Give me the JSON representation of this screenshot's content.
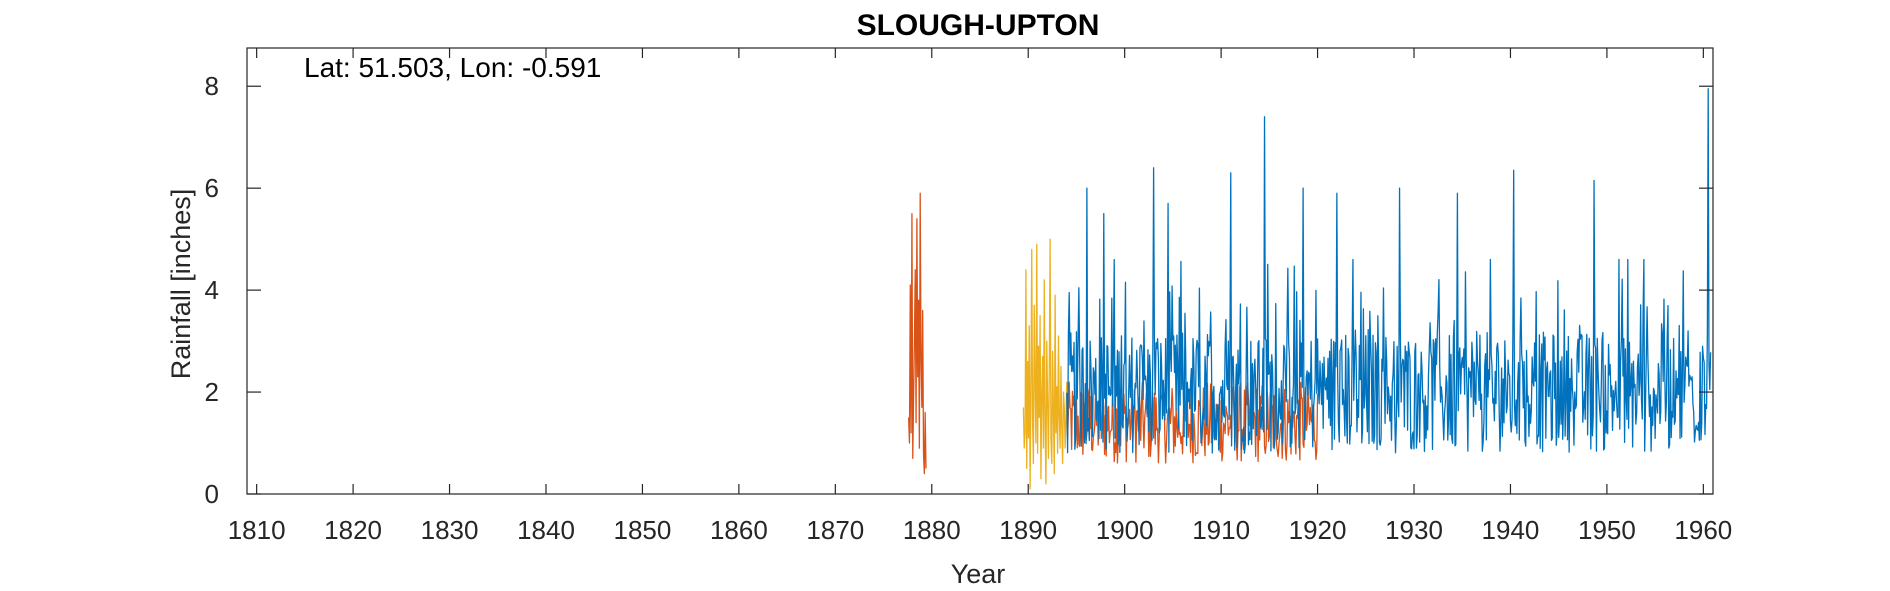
{
  "chart_data": {
    "type": "line",
    "title": "SLOUGH-UPTON",
    "annotation": "Lat: 51.503, Lon: -0.591",
    "xlabel": "Year",
    "ylabel": "Rainfall [inches]",
    "xlim": [
      1809,
      1961
    ],
    "ylim": [
      0,
      8.75
    ],
    "xticks": [
      1810,
      1820,
      1830,
      1840,
      1850,
      1860,
      1870,
      1880,
      1890,
      1900,
      1910,
      1920,
      1930,
      1940,
      1950,
      1960
    ],
    "xtick_labels": [
      "1810",
      "1820",
      "1830",
      "1840",
      "1850",
      "1860",
      "1870",
      "1880",
      "1890",
      "1900",
      "1910",
      "1920",
      "1930",
      "1940",
      "1950",
      "1960"
    ],
    "yticks": [
      0,
      2,
      4,
      6,
      8
    ],
    "ytick_labels": [
      "0",
      "2",
      "4",
      "6",
      "8"
    ],
    "grid": false,
    "box": true,
    "series": [
      {
        "color": "#D95319",
        "x_start": 1877.6,
        "x_end": 1879.4,
        "step": 0.0833333,
        "values": [
          1.5,
          1.0,
          4.1,
          1.2,
          5.5,
          0.7,
          1.9,
          3.0,
          4.4,
          1.4,
          5.4,
          2.3,
          3.8,
          0.9,
          5.9,
          2.6,
          1.7,
          3.6,
          0.8,
          0.4,
          1.6,
          0.5
        ]
      },
      {
        "color": "#D95319",
        "x_start": 1894.0,
        "x_end": 1920.0,
        "step": 0.0833333,
        "values": "low-overlap monthly series partially hidden behind blue"
      },
      {
        "color": "#EDB120",
        "x_start": 1889.5,
        "x_end": 1894.0,
        "step": 0.0833333,
        "values": [
          1.7,
          0.9,
          1.2,
          4.4,
          0.5,
          2.6,
          1.1,
          3.3,
          0.1,
          2.0,
          4.8,
          1.4,
          0.6,
          3.7,
          2.2,
          1.0,
          4.9,
          0.8,
          2.9,
          1.5,
          3.5,
          0.3,
          1.9,
          2.7,
          0.9,
          4.2,
          1.3,
          0.2,
          3.0,
          1.8,
          0.7,
          2.4,
          5.0,
          1.1,
          0.6,
          2.8,
          1.6,
          0.4,
          3.9,
          1.2,
          2.1,
          0.8,
          3.1,
          1.5,
          0.9,
          2.5,
          1.3,
          0.6,
          2.0,
          1.7,
          0.9,
          1.5,
          2.2
        ]
      },
      {
        "color": "#0072BD",
        "x_start": 1894.0,
        "x_end": 1960.8,
        "step": 0.0833333,
        "mean": 2.0,
        "min": 0.05,
        "max": 7.95,
        "peaks": [
          [
            1896.1,
            6.0
          ],
          [
            1897.8,
            5.5
          ],
          [
            1903.0,
            6.4
          ],
          [
            1904.5,
            5.7
          ],
          [
            1911.0,
            6.3
          ],
          [
            1914.5,
            7.4
          ],
          [
            1918.5,
            6.0
          ],
          [
            1922.0,
            5.9
          ],
          [
            1928.5,
            6.0
          ],
          [
            1934.5,
            5.9
          ],
          [
            1940.3,
            6.35
          ],
          [
            1948.7,
            6.15
          ],
          [
            1960.5,
            7.95
          ]
        ]
      }
    ]
  }
}
